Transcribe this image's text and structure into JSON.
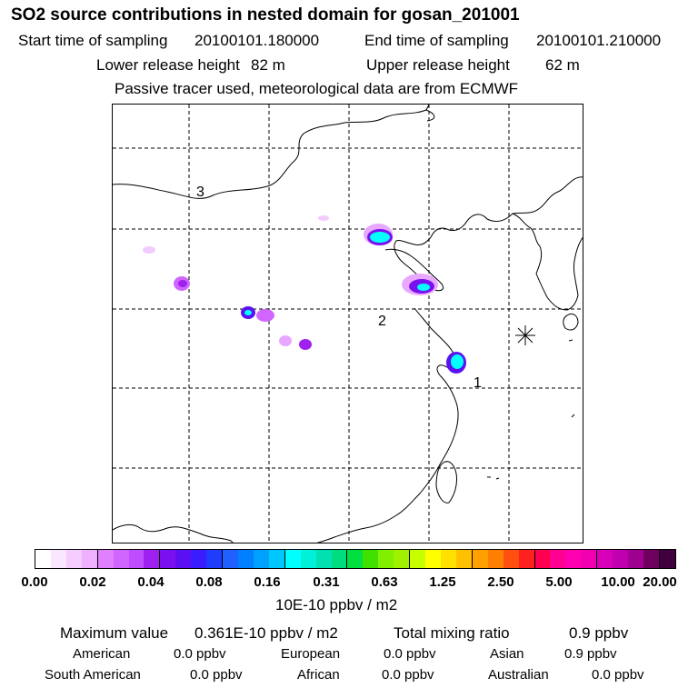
{
  "header": {
    "title": "SO2 source contributions in nested domain for gosan_201001",
    "start_label": "Start time of sampling",
    "start_value": "20100101.180000",
    "end_label": "End time of sampling",
    "end_value": "20100101.210000",
    "lower_label": "Lower release height",
    "lower_value": "82 m",
    "upper_label": "Upper release height",
    "upper_value": "62 m",
    "tracer_note": "Passive tracer used, meteorological data are from ECMWF"
  },
  "map": {
    "receptor_symbol": "gosan-station-marker",
    "labels": [
      "3",
      "2",
      "1"
    ]
  },
  "colorbar": {
    "colors": [
      "#ffffff",
      "#fbe6ff",
      "#f5ccff",
      "#eeb1ff",
      "#e080ff",
      "#d066ff",
      "#c04cff",
      "#a020f0",
      "#7a10f0",
      "#5a10f0",
      "#3a1cff",
      "#1f3cff",
      "#2060ff",
      "#0080ff",
      "#00a0ff",
      "#00c8ff",
      "#00ffff",
      "#00f0d8",
      "#00e0b0",
      "#00dc80",
      "#00e040",
      "#40e000",
      "#80f000",
      "#a0f000",
      "#c8ff00",
      "#ffff00",
      "#ffe000",
      "#ffc000",
      "#ffa000",
      "#ff8000",
      "#ff5010",
      "#ff2020",
      "#ff0050",
      "#ff0090",
      "#ff00b0",
      "#f000b0",
      "#d800b8",
      "#c000b0",
      "#a00090",
      "#700060",
      "#400040"
    ],
    "tick_labels": [
      "0.00",
      "0.02",
      "0.04",
      "0.08",
      "0.16",
      "0.31",
      "0.63",
      "1.25",
      "2.50",
      "5.00",
      "10.00",
      "20.00"
    ],
    "units": "10E-10 ppbv / m2"
  },
  "stats": {
    "max_label": "Maximum value",
    "max_value": "0.361E-10 ppbv / m2",
    "total_label": "Total mixing ratio",
    "total_value": "0.9 ppbv",
    "regions": [
      {
        "name": "American",
        "value": "0.0 ppbv"
      },
      {
        "name": "European",
        "value": "0.0 ppbv"
      },
      {
        "name": "Asian",
        "value": "0.9 ppbv"
      },
      {
        "name": "South American",
        "value": "0.0 ppbv"
      },
      {
        "name": "African",
        "value": "0.0 ppbv"
      },
      {
        "name": "Australian",
        "value": "0.0 ppbv"
      }
    ]
  }
}
